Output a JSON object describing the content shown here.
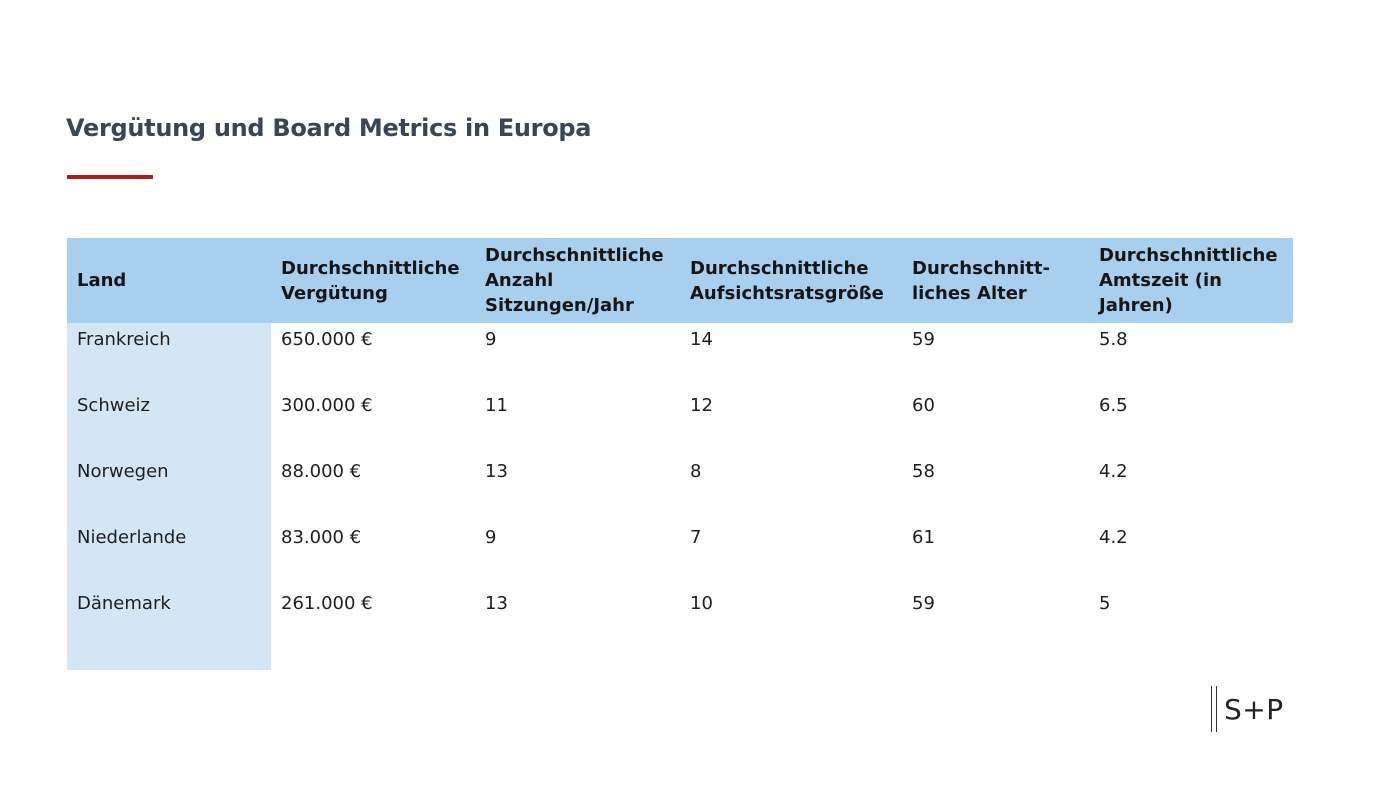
{
  "title": "Vergütung und Board Metrics in Europa",
  "colors": {
    "title": "#3a4555",
    "accent_rule": "#a5201f",
    "header_bg": "#a8cfee",
    "first_column_bg": "#d3e6f6"
  },
  "table": {
    "headers": [
      "Land",
      "Durchschnittliche Vergütung",
      "Durchschnittliche Anzahl Sitzungen/Jahr",
      "Durchschnittliche Aufsichtsratsgröße",
      "Durchschnitt-liches Alter",
      "Durchschnittliche Amtszeit (in Jahren)"
    ],
    "rows": [
      [
        "Frankreich",
        "650.000 €",
        "9",
        "14",
        "59",
        "5.8"
      ],
      [
        "Schweiz",
        "300.000 €",
        "11",
        "12",
        "60",
        "6.5"
      ],
      [
        "Norwegen",
        "88.000 €",
        "13",
        "8",
        "58",
        "4.2"
      ],
      [
        "Niederlande",
        "83.000 €",
        "9",
        "7",
        "61",
        "4.2"
      ],
      [
        "Dänemark",
        "261.000 €",
        "13",
        "10",
        "59",
        "5"
      ]
    ]
  },
  "logo": {
    "text": "S+P"
  }
}
